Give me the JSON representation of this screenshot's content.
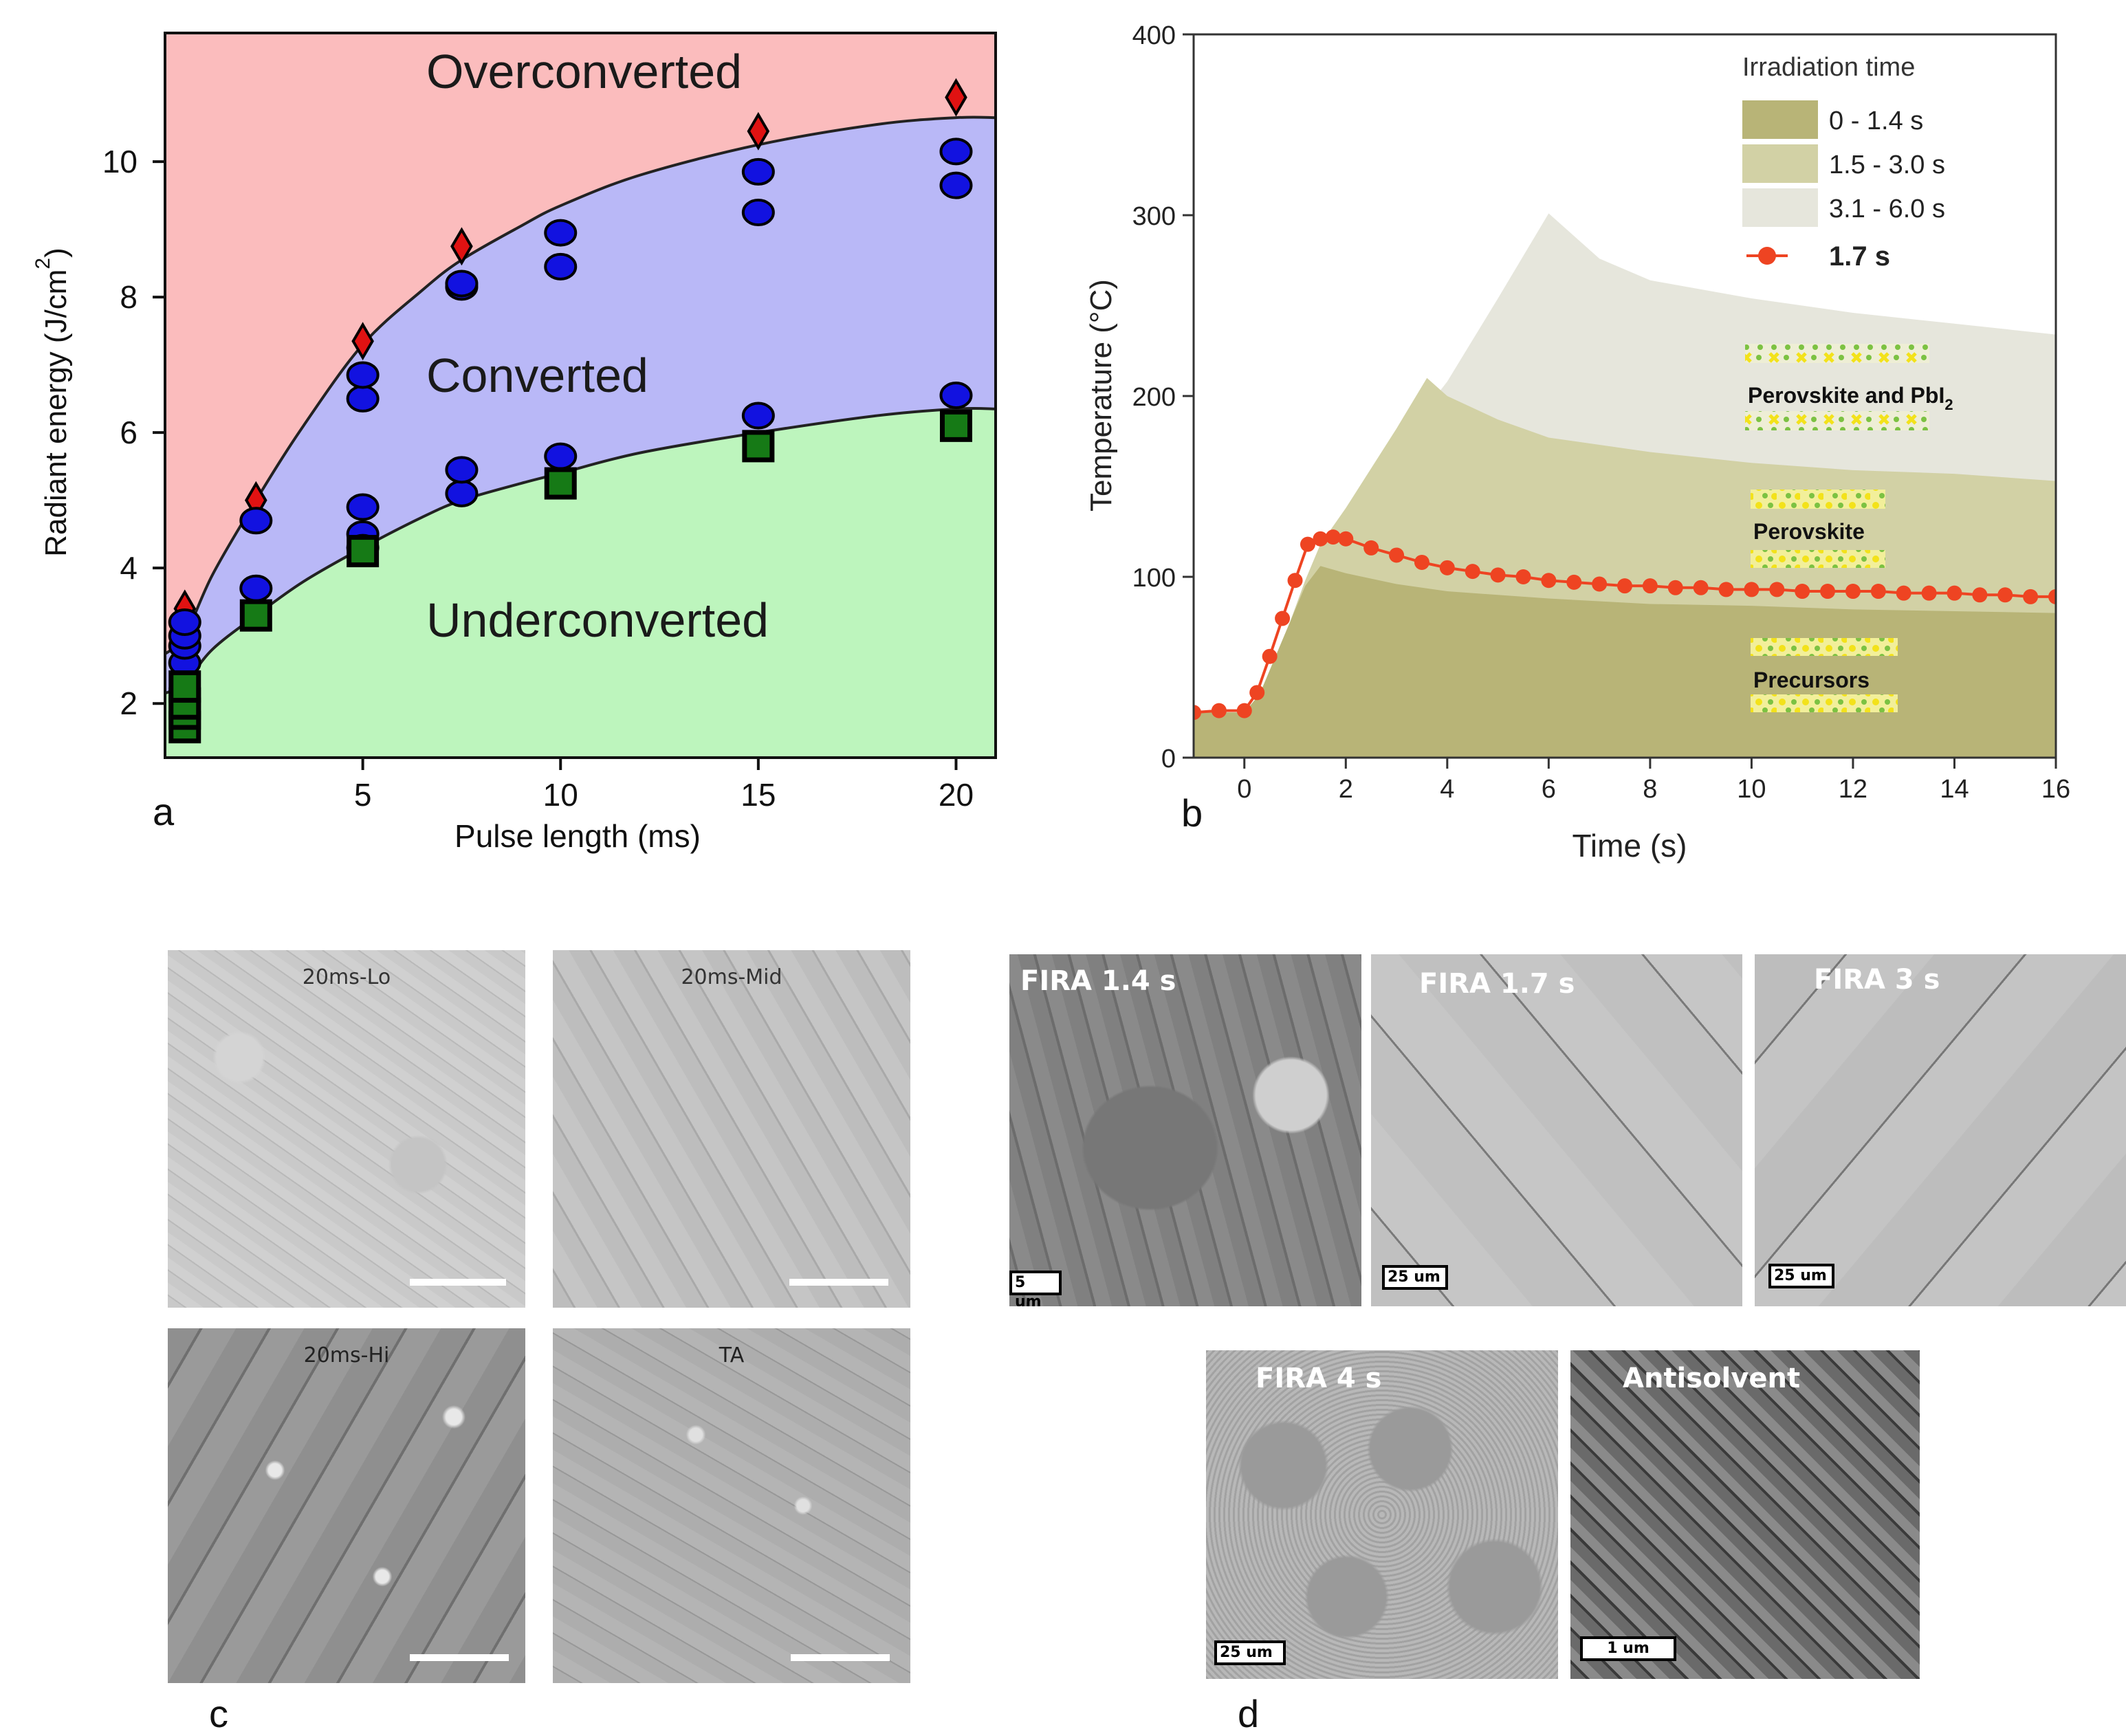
{
  "panel_labels": {
    "a": "a",
    "b": "b",
    "c": "c",
    "d": "d"
  },
  "chart_data": [
    {
      "id": "a",
      "type": "scatter",
      "title": "",
      "xlabel": "Pulse length (ms)",
      "ylabel": "Radiant energy (J/cm",
      "ylabel_sup": "2",
      "ylabel_end": ")",
      "xlim": [
        0,
        21
      ],
      "ylim": [
        1.2,
        11.9
      ],
      "xticks": [
        5,
        10,
        15,
        20
      ],
      "yticks": [
        2,
        4,
        6,
        8,
        10
      ],
      "regions": [
        "Overconverted",
        "Converted",
        "Underconverted"
      ],
      "colors": {
        "over": "#fbbcbd",
        "conv": "#b9b8f7",
        "under": "#bdf5bd",
        "circle": "#1212e0",
        "square": "#167a16",
        "diamond": "#e01212"
      },
      "upper_boundary": {
        "x": [
          0.5,
          1.2,
          2.3,
          3.5,
          5,
          6.5,
          7.5,
          9,
          10,
          12,
          15,
          18,
          20
        ],
        "y": [
          3.0,
          3.9,
          5.0,
          6.1,
          7.3,
          8.1,
          8.55,
          9.05,
          9.35,
          9.8,
          10.25,
          10.55,
          10.65
        ]
      },
      "lower_boundary": {
        "x": [
          0.5,
          1.2,
          2.3,
          3.5,
          5,
          6.5,
          7.5,
          9,
          10,
          12,
          15,
          18,
          20
        ],
        "y": [
          2.3,
          2.8,
          3.3,
          3.8,
          4.3,
          4.75,
          5.0,
          5.25,
          5.4,
          5.7,
          6.0,
          6.25,
          6.35
        ]
      },
      "series": [
        {
          "name": "Overconverted",
          "marker": "diamond",
          "x": [
            0.5,
            2.3,
            5,
            7.5,
            15,
            20
          ],
          "y": [
            3.4,
            5.0,
            7.35,
            8.75,
            10.45,
            10.95
          ]
        },
        {
          "name": "Converted",
          "marker": "circle",
          "x": [
            0.5,
            0.5,
            0.5,
            0.5,
            2.3,
            2.3,
            5,
            5,
            5,
            5,
            5,
            7.5,
            7.5,
            7.5,
            7.5,
            10,
            10,
            10,
            15,
            15,
            15,
            20,
            20,
            20
          ],
          "y": [
            2.6,
            2.85,
            3.0,
            3.2,
            3.7,
            4.7,
            4.5,
            4.9,
            6.5,
            6.85,
            4.3,
            5.1,
            5.45,
            8.15,
            8.2,
            5.65,
            8.45,
            8.95,
            6.25,
            9.25,
            9.85,
            6.55,
            9.65,
            10.15
          ]
        },
        {
          "name": "Underconverted",
          "marker": "square",
          "x": [
            0.5,
            0.5,
            0.5,
            0.5,
            2.3,
            5,
            10,
            15,
            20
          ],
          "y": [
            1.65,
            1.85,
            2.0,
            2.25,
            3.3,
            4.25,
            5.25,
            5.8,
            6.1
          ]
        }
      ]
    },
    {
      "id": "b",
      "type": "area",
      "title": "",
      "xlabel": "Time (s)",
      "ylabel": "Temperature (°C)",
      "xlim": [
        -1,
        16
      ],
      "ylim": [
        0,
        400
      ],
      "xticks": [
        0,
        2,
        4,
        6,
        8,
        10,
        12,
        14,
        16
      ],
      "yticks": [
        0,
        100,
        200,
        300,
        400
      ],
      "legend_title": "Irradiation time",
      "series": [
        {
          "name": "3.1 - 6.0 s",
          "color": "#e6e6dc",
          "x": [
            -1,
            0,
            0.3,
            0.6,
            0.9,
            1.2,
            1.5,
            2,
            3,
            4,
            5,
            6,
            7,
            8,
            10,
            12,
            14,
            16
          ],
          "y": [
            25,
            25,
            35,
            55,
            75,
            98,
            118,
            136,
            172,
            208,
            254,
            301,
            276,
            264,
            254,
            246,
            240,
            234
          ]
        },
        {
          "name": "1.5 - 3.0 s",
          "color": "#d2d1a5",
          "x": [
            -1,
            0,
            0.3,
            0.6,
            0.9,
            1.2,
            1.5,
            2,
            3,
            3.6,
            4,
            5,
            6,
            8,
            10,
            12,
            14,
            16
          ],
          "y": [
            25,
            25,
            35,
            55,
            75,
            98,
            118,
            138,
            182,
            210,
            200,
            187,
            177,
            169,
            163,
            159,
            157,
            153
          ]
        },
        {
          "name": "0 - 1.4 s",
          "color": "#b8b477",
          "x": [
            -1,
            0,
            0.3,
            0.6,
            0.9,
            1.2,
            1.5,
            2,
            3,
            4,
            6,
            8,
            10,
            12,
            14,
            16
          ],
          "y": [
            25,
            25,
            35,
            55,
            75,
            95,
            106,
            102,
            96,
            92,
            88,
            85,
            84,
            82,
            81,
            80
          ]
        },
        {
          "name": "1.7 s",
          "color": "#ee4422",
          "marker": "circle",
          "x": [
            -1,
            -0.5,
            0,
            0.25,
            0.5,
            0.75,
            1.0,
            1.25,
            1.5,
            1.75,
            2.0,
            2.5,
            3.0,
            3.5,
            4.0,
            4.5,
            5.0,
            5.5,
            6.0,
            6.5,
            7.0,
            7.5,
            8.0,
            8.5,
            9.0,
            9.5,
            10.0,
            10.5,
            11.0,
            11.5,
            12.0,
            12.5,
            13.0,
            13.5,
            14.0,
            14.5,
            15.0,
            15.5,
            16.0
          ],
          "y": [
            25,
            26,
            26,
            36,
            56,
            77,
            98,
            118,
            121,
            122,
            121,
            116,
            112,
            108,
            105,
            103,
            101,
            100,
            98,
            97,
            96,
            95,
            95,
            94,
            94,
            93,
            93,
            93,
            92,
            92,
            92,
            92,
            91,
            91,
            91,
            90,
            90,
            89,
            89
          ]
        }
      ],
      "insets": [
        {
          "label": "Perovskite and PbI",
          "sub": "2"
        },
        {
          "label": "Perovskite",
          "sub": ""
        },
        {
          "label": "Precursors",
          "sub": ""
        }
      ]
    }
  ],
  "images_c": [
    {
      "label": "20ms-Lo"
    },
    {
      "label": "20ms-Mid"
    },
    {
      "label": "20ms-Hi"
    },
    {
      "label": "TA"
    }
  ],
  "images_d": [
    {
      "label": "FIRA 1.4 s",
      "scale": "5 um"
    },
    {
      "label": "FIRA 1.7 s",
      "scale": "25 um"
    },
    {
      "label": "FIRA 3 s",
      "scale": "25 um"
    },
    {
      "label": "FIRA 4 s",
      "scale": "25 um"
    },
    {
      "label": "Antisolvent",
      "scale": "1 um"
    }
  ]
}
